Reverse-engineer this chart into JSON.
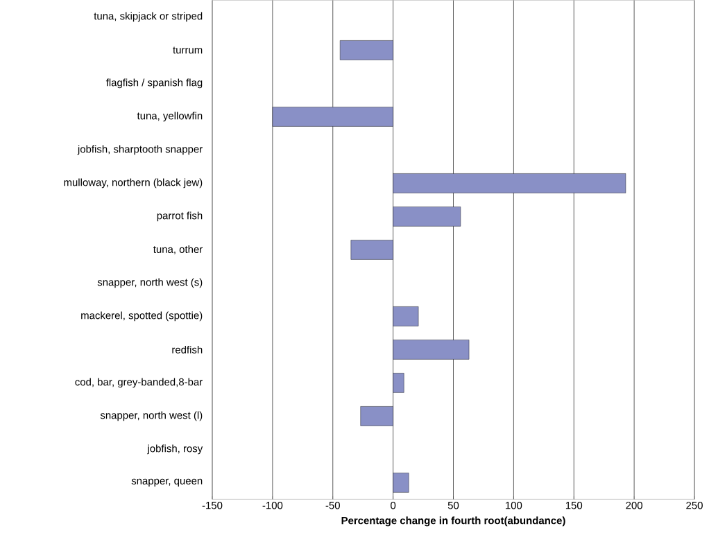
{
  "chart_data": {
    "type": "bar",
    "orientation": "horizontal",
    "categories": [
      "tuna, skipjack or striped",
      "turrum",
      "flagfish / spanish flag",
      "tuna, yellowfin",
      "jobfish, sharptooth snapper",
      "mulloway, northern (black jew)",
      "parrot fish",
      "tuna, other",
      "snapper, north west (s)",
      "mackerel, spotted (spottie)",
      "redfish",
      "cod, bar, grey-banded,8-bar",
      "snapper, north west (l)",
      "jobfish, rosy",
      "snapper, queen"
    ],
    "values": [
      null,
      -44,
      null,
      -100,
      null,
      193,
      56,
      -35,
      null,
      21,
      63,
      9,
      -27,
      null,
      13
    ],
    "color": "#8990c6",
    "xlim": [
      -150,
      250
    ],
    "xticks": [
      -150,
      -100,
      -50,
      0,
      50,
      100,
      150,
      200,
      250
    ],
    "xlabel": "Percentage change in fourth root(abundance)",
    "grid": "x"
  }
}
